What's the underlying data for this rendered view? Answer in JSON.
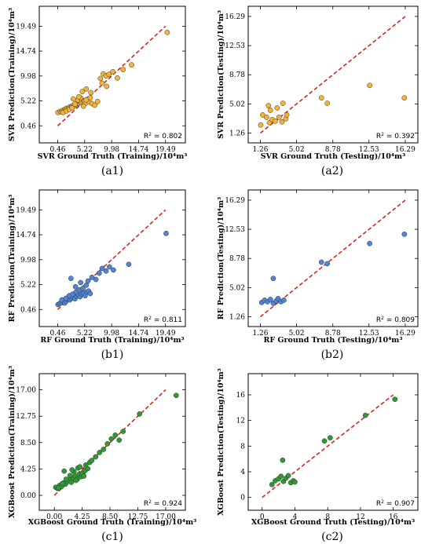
{
  "chart_data": [
    {
      "id": "a1",
      "type": "scatter",
      "panel_label": "(a1)",
      "xlabel": "SVR Ground Truth (Training)/10⁴m³",
      "ylabel": "SVR Prediction(Training)/10⁴m³",
      "ticks": [
        "0.46",
        "5.22",
        "9.98",
        "14.74",
        "19.49"
      ],
      "tick_values": [
        0.46,
        5.22,
        9.98,
        14.74,
        19.49
      ],
      "xlim": [
        -2.8,
        23.0
      ],
      "ylim": [
        -2.8,
        23.3
      ],
      "r2": "0.802",
      "point_color": "#f5b335",
      "diag_line": [
        [
          0.46,
          0.46
        ],
        [
          19.49,
          19.49
        ]
      ],
      "x": [
        0.5,
        0.9,
        1.1,
        1.3,
        1.5,
        1.7,
        1.9,
        2.0,
        2.2,
        2.4,
        2.6,
        2.8,
        3.0,
        3.2,
        3.4,
        3.6,
        3.8,
        4.0,
        4.2,
        4.4,
        4.6,
        4.8,
        5.0,
        5.2,
        5.4,
        5.6,
        5.8,
        6.0,
        6.2,
        1.4,
        2.0,
        2.5,
        3.0,
        3.5,
        4.0,
        4.5,
        5.0,
        3.2,
        4.2,
        5.5,
        6.5,
        7.0,
        7.5,
        8.0,
        8.5,
        9.0,
        9.5,
        10.2,
        11.0,
        12.0,
        4.8,
        5.5,
        6.3,
        8.3,
        9.1,
        13.5,
        19.8
      ],
      "y": [
        3.0,
        3.2,
        3.1,
        3.4,
        3.3,
        3.6,
        3.5,
        3.8,
        3.7,
        3.9,
        4.1,
        4.0,
        4.2,
        4.4,
        4.3,
        4.6,
        4.5,
        4.7,
        4.8,
        5.0,
        4.9,
        5.1,
        5.3,
        5.2,
        4.8,
        5.4,
        5.6,
        5.0,
        5.8,
        3.0,
        3.3,
        3.6,
        3.9,
        4.6,
        5.4,
        5.8,
        4.2,
        5.6,
        6.0,
        5.4,
        4.7,
        4.4,
        5.1,
        9.5,
        10.4,
        10.0,
        10.3,
        10.8,
        9.6,
        11.2,
        7.0,
        7.5,
        6.8,
        8.6,
        8.0,
        12.1,
        18.3
      ]
    },
    {
      "id": "a2",
      "type": "scatter",
      "panel_label": "(a2)",
      "xlabel": "SVR Ground Truth (Testing)/10⁴m³",
      "ylabel": "SVR Prediction(Testing)/10⁴m³",
      "ticks": [
        "1.26",
        "5.02",
        "8.78",
        "12.53",
        "16.29"
      ],
      "tick_values": [
        1.26,
        5.02,
        8.78,
        12.53,
        16.29
      ],
      "xlim": [
        0.0,
        17.6
      ],
      "ylim": [
        0.0,
        17.6
      ],
      "r2": "0.392",
      "point_color": "#f5b335",
      "diag_line": [
        [
          1.26,
          1.26
        ],
        [
          16.29,
          16.29
        ]
      ],
      "x": [
        1.3,
        1.5,
        1.9,
        2.1,
        2.2,
        2.5,
        2.8,
        3.0,
        3.2,
        3.6,
        3.9,
        4.0,
        2.3,
        3.5,
        7.6,
        8.2,
        12.6,
        16.2
      ],
      "y": [
        2.3,
        3.6,
        3.3,
        4.8,
        2.6,
        3.0,
        2.8,
        4.5,
        3.3,
        5.1,
        3.1,
        3.6,
        4.2,
        2.7,
        5.8,
        5.1,
        7.4,
        5.8
      ]
    },
    {
      "id": "b1",
      "type": "scatter",
      "panel_label": "(b1)",
      "xlabel": "RF Ground Truth (Training)/10⁴m³",
      "ylabel": "RF Prediction(Training)/10⁴m³",
      "ticks": [
        "0.46",
        "5.22",
        "9.98",
        "14.74",
        "19.49"
      ],
      "tick_values": [
        0.46,
        5.22,
        9.98,
        14.74,
        19.49
      ],
      "xlim": [
        -2.8,
        23.0
      ],
      "ylim": [
        -2.8,
        23.3
      ],
      "r2": "0.811",
      "point_color": "#4f84d6",
      "diag_line": [
        [
          0.46,
          0.46
        ],
        [
          19.49,
          19.49
        ]
      ],
      "x": [
        0.5,
        0.8,
        1.1,
        1.4,
        1.7,
        2.0,
        2.3,
        2.6,
        2.9,
        3.2,
        3.5,
        3.8,
        4.1,
        4.4,
        4.7,
        5.0,
        5.3,
        5.6,
        5.9,
        6.2,
        1.2,
        1.9,
        2.5,
        3.1,
        3.7,
        4.3,
        4.9,
        5.5,
        2.8,
        3.6,
        4.5,
        5.8,
        6.5,
        7.2,
        7.8,
        8.3,
        9.0,
        9.6,
        10.3,
        13.0,
        19.6
      ],
      "y": [
        1.4,
        1.6,
        1.8,
        2.0,
        1.7,
        2.1,
        2.4,
        2.3,
        2.6,
        2.8,
        2.5,
        3.0,
        3.2,
        2.9,
        3.4,
        3.6,
        3.1,
        3.8,
        4.0,
        3.5,
        2.3,
        2.6,
        3.1,
        3.4,
        3.8,
        4.2,
        4.5,
        5.1,
        6.4,
        4.8,
        5.6,
        5.9,
        6.6,
        6.2,
        7.4,
        8.3,
        7.8,
        8.6,
        8.0,
        9.1,
        15.0
      ]
    },
    {
      "id": "b2",
      "type": "scatter",
      "panel_label": "(b2)",
      "xlabel": "RF Ground Truth (Testing)/10⁴m³",
      "ylabel": "RF Prediction(Testing)/10⁴m³",
      "ticks": [
        "1.26",
        "5.02",
        "8.78",
        "12.53",
        "16.29"
      ],
      "tick_values": [
        1.26,
        5.02,
        8.78,
        12.53,
        16.29
      ],
      "xlim": [
        0.0,
        17.6
      ],
      "ylim": [
        0.0,
        17.6
      ],
      "r2": "0.809",
      "point_color": "#4f84d6",
      "diag_line": [
        [
          1.26,
          1.26
        ],
        [
          16.29,
          16.29
        ]
      ],
      "x": [
        1.4,
        1.7,
        2.0,
        2.3,
        2.6,
        2.9,
        3.1,
        3.4,
        3.7,
        2.6,
        7.6,
        8.2,
        12.6,
        16.2
      ],
      "y": [
        3.1,
        3.4,
        3.2,
        3.5,
        3.0,
        3.3,
        3.6,
        3.2,
        3.4,
        6.2,
        8.3,
        8.1,
        10.7,
        11.9
      ]
    },
    {
      "id": "c1",
      "type": "scatter",
      "panel_label": "(c1)",
      "xlabel": "XGBoost Ground Truth (Training)/10⁴m³",
      "ylabel": "XGBoost Prediction(Training)/10⁴m³",
      "xticks": [
        "0.00",
        "4.25",
        "8.50",
        "12.75",
        "17.00"
      ],
      "xtick_values": [
        0.0,
        4.25,
        8.5,
        12.75,
        17.0
      ],
      "yticks": [
        "0.00",
        "4.25",
        "8.50",
        "12.75",
        "17.00"
      ],
      "ytick_values": [
        0.0,
        4.25,
        8.5,
        12.75,
        17.0
      ],
      "xlim": [
        -2.3,
        20.0
      ],
      "ylim": [
        -2.4,
        19.6
      ],
      "r2": "0.924",
      "point_color": "#2e9a36",
      "diag_line": [
        [
          0.0,
          0.0
        ],
        [
          17.0,
          17.0
        ]
      ],
      "x": [
        0.2,
        0.5,
        0.8,
        1.1,
        1.4,
        1.7,
        2.0,
        2.3,
        2.6,
        2.9,
        3.2,
        3.5,
        3.8,
        4.1,
        4.4,
        4.7,
        0.6,
        1.2,
        1.8,
        2.4,
        3.0,
        3.6,
        4.2,
        4.8,
        5.4,
        1.5,
        2.7,
        3.3,
        3.9,
        4.5,
        5.1,
        5.7,
        6.3,
        6.9,
        7.5,
        8.1,
        8.7,
        9.3,
        9.9,
        10.5,
        13.0,
        18.6
      ],
      "y": [
        1.3,
        1.1,
        1.6,
        1.4,
        2.0,
        1.8,
        2.2,
        2.5,
        2.1,
        2.8,
        3.1,
        2.6,
        3.4,
        3.0,
        3.7,
        4.0,
        1.2,
        1.9,
        2.6,
        3.2,
        3.8,
        4.4,
        3.5,
        4.9,
        5.3,
        3.9,
        4.1,
        2.4,
        4.6,
        3.1,
        4.3,
        5.6,
        6.2,
        6.9,
        7.4,
        8.3,
        9.1,
        9.7,
        8.9,
        10.3,
        13.1,
        16.1
      ]
    },
    {
      "id": "c2",
      "type": "scatter",
      "panel_label": "(c2)",
      "xlabel": "XGBoost Ground Truth (Testing)/10⁴m³",
      "ylabel": "XGBoost Prediction(Testing)/10⁴m³",
      "xticks": [
        "0",
        "4",
        "8",
        "12",
        "16"
      ],
      "xtick_values": [
        0,
        4,
        8,
        12,
        16
      ],
      "yticks": [
        "0",
        "4",
        "8",
        "12",
        "16"
      ],
      "ytick_values": [
        0,
        4,
        8,
        12,
        16
      ],
      "xlim": [
        -1.7,
        19.0
      ],
      "ylim": [
        -2.0,
        19.3
      ],
      "r2": "0.907",
      "point_color": "#2e9a36",
      "diag_line": [
        [
          0,
          0
        ],
        [
          16,
          16
        ]
      ],
      "x": [
        1.2,
        1.6,
        2.0,
        2.3,
        2.6,
        2.9,
        3.2,
        3.5,
        3.8,
        4.0,
        2.5,
        7.6,
        8.3,
        12.6,
        16.2
      ],
      "y": [
        2.0,
        2.6,
        2.9,
        3.3,
        2.5,
        3.0,
        3.4,
        2.3,
        2.6,
        2.4,
        5.8,
        8.8,
        9.3,
        12.8,
        15.3
      ]
    }
  ]
}
